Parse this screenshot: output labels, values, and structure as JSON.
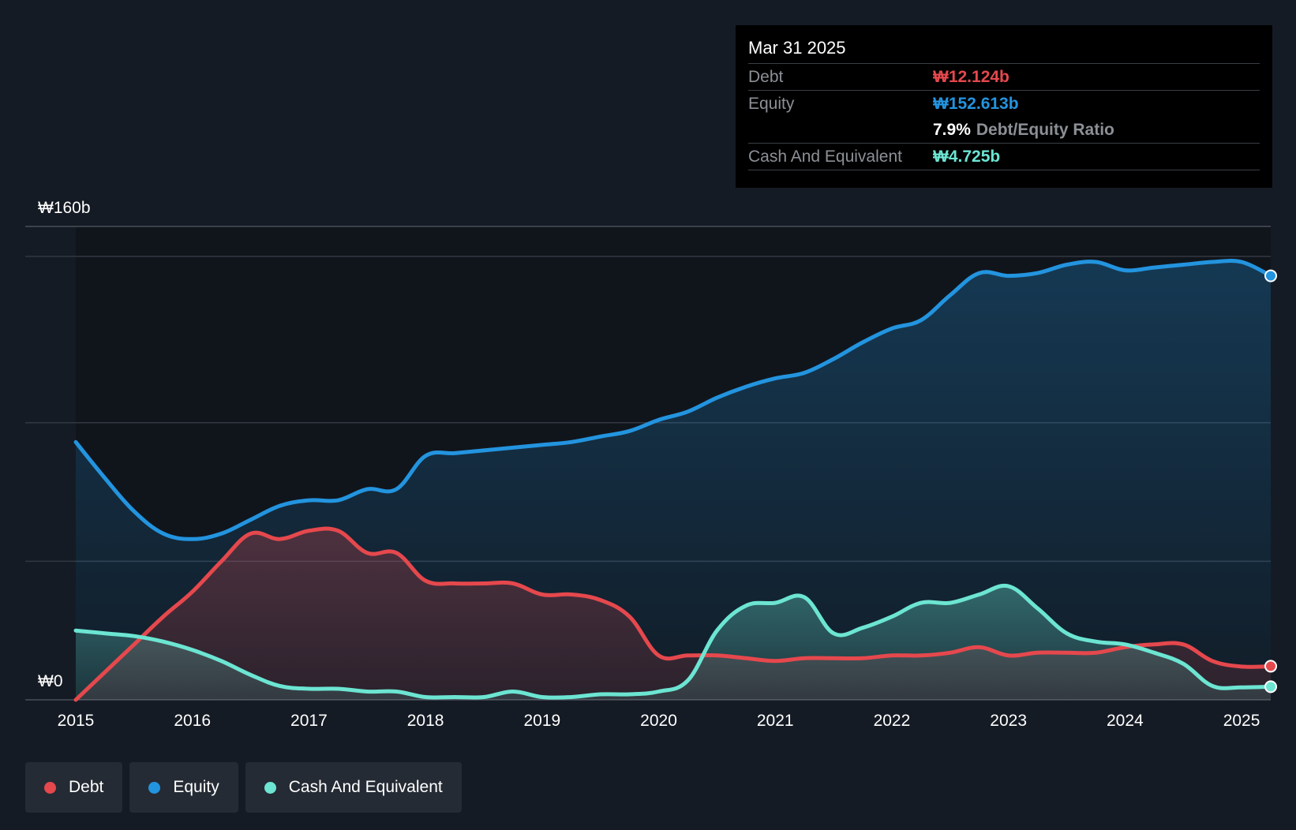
{
  "colors": {
    "debt": "#e5484d",
    "equity": "#2394df",
    "cash": "#6ce5d2",
    "background": "#151b24",
    "gridline": "#323842"
  },
  "tooltip": {
    "date": "Mar 31 2025",
    "debt_label": "Debt",
    "debt_value": "₩12.124b",
    "equity_label": "Equity",
    "equity_value": "₩152.613b",
    "ratio_value": "7.9%",
    "ratio_label": "Debt/Equity Ratio",
    "cash_label": "Cash And Equivalent",
    "cash_value": "₩4.725b"
  },
  "legend": [
    {
      "label": "Debt",
      "color_key": "debt"
    },
    {
      "label": "Equity",
      "color_key": "equity"
    },
    {
      "label": "Cash And Equivalent",
      "color_key": "cash"
    }
  ],
  "chart_data": {
    "type": "area",
    "title": "",
    "xlabel": "",
    "ylabel": "",
    "ylim": [
      0,
      160
    ],
    "y_tick_labels": [
      {
        "value": 160,
        "label": "₩160b"
      },
      {
        "value": 0,
        "label": "₩0"
      }
    ],
    "x_ticks": [
      2015,
      2016,
      2017,
      2018,
      2019,
      2020,
      2021,
      2022,
      2023,
      2024,
      2025
    ],
    "x_range": [
      2015,
      2025.25
    ],
    "series": [
      {
        "name": "Equity",
        "color_key": "equity",
        "points": [
          [
            2015.0,
            93
          ],
          [
            2015.25,
            80
          ],
          [
            2015.5,
            68
          ],
          [
            2015.75,
            60
          ],
          [
            2016.0,
            58
          ],
          [
            2016.25,
            60
          ],
          [
            2016.5,
            65
          ],
          [
            2016.75,
            70
          ],
          [
            2017.0,
            72
          ],
          [
            2017.25,
            72
          ],
          [
            2017.5,
            76
          ],
          [
            2017.75,
            76
          ],
          [
            2018.0,
            88
          ],
          [
            2018.25,
            89
          ],
          [
            2018.5,
            90
          ],
          [
            2018.75,
            91
          ],
          [
            2019.0,
            92
          ],
          [
            2019.25,
            93
          ],
          [
            2019.5,
            95
          ],
          [
            2019.75,
            97
          ],
          [
            2020.0,
            101
          ],
          [
            2020.25,
            104
          ],
          [
            2020.5,
            109
          ],
          [
            2020.75,
            113
          ],
          [
            2021.0,
            116
          ],
          [
            2021.25,
            118
          ],
          [
            2021.5,
            123
          ],
          [
            2021.75,
            129
          ],
          [
            2022.0,
            134
          ],
          [
            2022.25,
            137
          ],
          [
            2022.5,
            146
          ],
          [
            2022.75,
            154
          ],
          [
            2023.0,
            153
          ],
          [
            2023.25,
            154
          ],
          [
            2023.5,
            157
          ],
          [
            2023.75,
            158
          ],
          [
            2024.0,
            155
          ],
          [
            2024.25,
            156
          ],
          [
            2024.5,
            157
          ],
          [
            2024.75,
            158
          ],
          [
            2025.0,
            158
          ],
          [
            2025.25,
            153
          ]
        ]
      },
      {
        "name": "Debt",
        "color_key": "debt",
        "points": [
          [
            2015.0,
            0
          ],
          [
            2015.25,
            10
          ],
          [
            2015.5,
            20
          ],
          [
            2015.75,
            30
          ],
          [
            2016.0,
            39
          ],
          [
            2016.25,
            50
          ],
          [
            2016.5,
            60
          ],
          [
            2016.75,
            58
          ],
          [
            2017.0,
            61
          ],
          [
            2017.25,
            61
          ],
          [
            2017.5,
            53
          ],
          [
            2017.75,
            53
          ],
          [
            2018.0,
            43
          ],
          [
            2018.25,
            42
          ],
          [
            2018.5,
            42
          ],
          [
            2018.75,
            42
          ],
          [
            2019.0,
            38
          ],
          [
            2019.25,
            38
          ],
          [
            2019.5,
            36
          ],
          [
            2019.75,
            30
          ],
          [
            2020.0,
            16
          ],
          [
            2020.25,
            16
          ],
          [
            2020.5,
            16
          ],
          [
            2020.75,
            15
          ],
          [
            2021.0,
            14
          ],
          [
            2021.25,
            15
          ],
          [
            2021.5,
            15
          ],
          [
            2021.75,
            15
          ],
          [
            2022.0,
            16
          ],
          [
            2022.25,
            16
          ],
          [
            2022.5,
            17
          ],
          [
            2022.75,
            19
          ],
          [
            2023.0,
            16
          ],
          [
            2023.25,
            17
          ],
          [
            2023.5,
            17
          ],
          [
            2023.75,
            17
          ],
          [
            2024.0,
            19
          ],
          [
            2024.25,
            20
          ],
          [
            2024.5,
            20
          ],
          [
            2024.75,
            14
          ],
          [
            2025.0,
            12
          ],
          [
            2025.25,
            12.124
          ]
        ]
      },
      {
        "name": "Cash And Equivalent",
        "color_key": "cash",
        "points": [
          [
            2015.0,
            25
          ],
          [
            2015.25,
            24
          ],
          [
            2015.5,
            23
          ],
          [
            2015.75,
            21
          ],
          [
            2016.0,
            18
          ],
          [
            2016.25,
            14
          ],
          [
            2016.5,
            9
          ],
          [
            2016.75,
            5
          ],
          [
            2017.0,
            4
          ],
          [
            2017.25,
            4
          ],
          [
            2017.5,
            3
          ],
          [
            2017.75,
            3
          ],
          [
            2018.0,
            1
          ],
          [
            2018.25,
            1
          ],
          [
            2018.5,
            1
          ],
          [
            2018.75,
            3
          ],
          [
            2019.0,
            1
          ],
          [
            2019.25,
            1
          ],
          [
            2019.5,
            2
          ],
          [
            2019.75,
            2
          ],
          [
            2020.0,
            3
          ],
          [
            2020.25,
            7
          ],
          [
            2020.5,
            25
          ],
          [
            2020.75,
            34
          ],
          [
            2021.0,
            35
          ],
          [
            2021.25,
            37
          ],
          [
            2021.5,
            24
          ],
          [
            2021.75,
            26
          ],
          [
            2022.0,
            30
          ],
          [
            2022.25,
            35
          ],
          [
            2022.5,
            35
          ],
          [
            2022.75,
            38
          ],
          [
            2023.0,
            41
          ],
          [
            2023.25,
            33
          ],
          [
            2023.5,
            24
          ],
          [
            2023.75,
            21
          ],
          [
            2024.0,
            20
          ],
          [
            2024.25,
            17
          ],
          [
            2024.5,
            13
          ],
          [
            2024.75,
            5
          ],
          [
            2025.0,
            4.5
          ],
          [
            2025.25,
            4.725
          ]
        ]
      }
    ]
  }
}
